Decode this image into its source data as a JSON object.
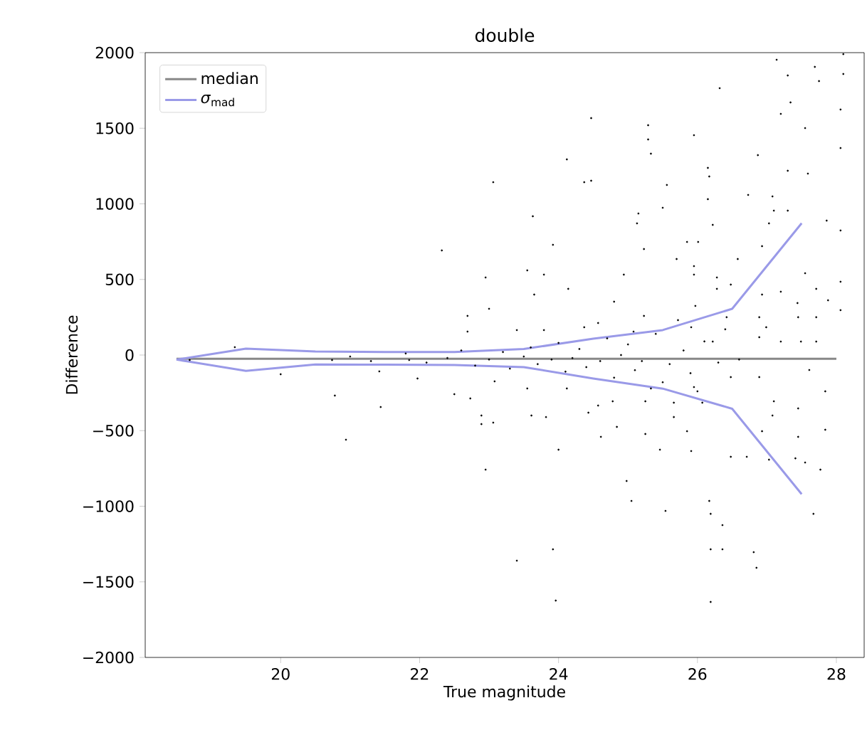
{
  "chart_data": {
    "type": "line",
    "title": "double",
    "xlabel": "True magnitude",
    "ylabel": "Difference",
    "xlim": [
      18.05,
      28.4
    ],
    "ylim": [
      -2000,
      2000
    ],
    "xticks": [
      20,
      22,
      24,
      26,
      28
    ],
    "yticks": [
      {
        "value": -2000,
        "label": "−2000"
      },
      {
        "value": -1500,
        "label": "−1500"
      },
      {
        "value": -1000,
        "label": "−1000"
      },
      {
        "value": -500,
        "label": "−500"
      },
      0,
      500,
      1000,
      1500,
      2000
    ],
    "legend": "top left",
    "grid": false,
    "line_style": "solid",
    "series": [
      {
        "type": "scatter",
        "color": "#000000",
        "x": [
          27.14,
          28.1,
          27.69,
          27.3,
          28.1,
          27.75,
          26.32,
          27.34,
          28.06,
          27.2,
          24.47,
          27.55,
          25.29,
          25.29,
          25.95,
          25.33,
          28.06,
          24.12,
          26.87,
          26.15,
          26.17,
          23.06,
          24.37,
          24.47,
          25.56,
          27.3,
          27.59,
          26.73,
          27.08,
          25.5,
          26.15,
          27.1,
          27.3,
          23.63,
          25.15,
          26.22,
          25.13,
          27.03,
          27.86,
          28.06,
          22.32,
          23.92,
          25.23,
          25.85,
          26.01,
          25.7,
          26.58,
          26.93,
          23.55,
          23.79,
          25.95,
          25.95,
          26.28,
          26.48,
          27.55,
          26.93,
          27.2,
          27.44,
          27.71,
          27.88,
          28.06,
          28.06,
          22.95,
          23.65,
          24.14,
          24.8,
          24.94,
          25.23,
          22.69,
          23.0,
          25.72,
          25.97,
          25.91,
          26.28,
          26.42,
          26.89,
          27.45,
          27.71,
          26.99,
          24.37,
          24.57,
          23.79,
          23.4,
          22.69,
          25.08,
          26.22,
          26.89,
          27.2,
          27.49,
          27.71,
          19.34,
          20.0,
          20.78,
          20.94,
          21.44,
          21.42,
          21.97,
          22.5,
          22.73,
          22.89,
          22.89,
          23.06,
          22.95,
          23.61,
          23.82,
          23.4,
          23.92,
          24.0,
          23.96,
          24.43,
          24.61,
          24.84,
          24.98,
          25.05,
          25.25,
          25.46,
          25.54,
          25.66,
          25.85,
          25.91,
          26.17,
          26.19,
          26.36,
          26.19,
          26.36,
          26.19,
          26.48,
          26.71,
          26.81,
          26.85,
          26.93,
          27.08,
          27.03,
          27.45,
          27.45,
          27.41,
          27.55,
          27.67,
          27.77,
          27.84,
          27.84,
          27.61,
          26.89,
          27.1,
          26.07,
          26.48,
          24.57,
          24.78,
          25.25,
          25.66,
          24.12,
          23.55,
          23.08,
          25.33,
          25.95,
          18.69,
          20.74,
          21.85,
          21.0,
          21.3,
          21.8,
          22.1,
          22.4,
          22.6,
          22.8,
          23.0,
          23.2,
          23.3,
          23.5,
          23.6,
          23.7,
          23.9,
          24.0,
          24.1,
          24.2,
          24.3,
          24.4,
          24.6,
          24.7,
          24.8,
          24.9,
          25.0,
          25.1,
          25.2,
          25.4,
          25.5,
          25.6,
          25.8,
          25.9,
          26.0,
          26.1,
          26.3,
          26.4,
          26.6
        ],
        "values": [
          1953,
          1990,
          1906,
          1849,
          1859,
          1812,
          1765,
          1671,
          1624,
          1595,
          1567,
          1501,
          1520,
          1426,
          1454,
          1332,
          1369,
          1294,
          1322,
          1238,
          1181,
          1143,
          1143,
          1153,
          1125,
          1219,
          1200,
          1059,
          1049,
          974,
          1031,
          955,
          955,
          918,
          936,
          861,
          871,
          871,
          889,
          824,
          692,
          729,
          701,
          748,
          748,
          635,
          635,
          720,
          560,
          532,
          588,
          532,
          513,
          466,
          541,
          400,
          419,
          344,
          438,
          362,
          297,
          485,
          513,
          400,
          438,
          353,
          532,
          259,
          259,
          306,
          231,
          325,
          184,
          438,
          250,
          250,
          250,
          250,
          184,
          184,
          212,
          165,
          165,
          155,
          155,
          89,
          118,
          89,
          89,
          89,
          52,
          -127,
          -268,
          -560,
          -344,
          -108,
          -155,
          -259,
          -287,
          -400,
          -457,
          -447,
          -758,
          -400,
          -410,
          -1360,
          -1285,
          -626,
          -1624,
          -381,
          -541,
          -475,
          -833,
          -965,
          -522,
          -626,
          -1031,
          -410,
          -504,
          -635,
          -965,
          -1050,
          -1125,
          -1285,
          -1285,
          -1633,
          -673,
          -673,
          -1304,
          -1407,
          -504,
          -400,
          -692,
          -353,
          -541,
          -683,
          -711,
          -1050,
          -758,
          -494,
          -240,
          -99,
          -146,
          -306,
          -315,
          -146,
          -334,
          -306,
          -306,
          -315,
          -221,
          -221,
          -174,
          -221,
          -212,
          -33,
          -33,
          -33,
          -10,
          -40,
          10,
          -50,
          -20,
          30,
          -70,
          -30,
          20,
          -90,
          -10,
          50,
          -60,
          -30,
          80,
          -110,
          -20,
          40,
          -80,
          -40,
          110,
          -150,
          0,
          70,
          -100,
          -40,
          140,
          -180,
          -60,
          30,
          -120,
          -240,
          90,
          -50,
          170,
          -30
        ]
      },
      {
        "name": "median",
        "color": "#888888",
        "x": [
          18.5,
          19.5,
          20.5,
          21.5,
          22.5,
          23.5,
          24.5,
          25.5,
          26.5,
          27.5,
          28.0
        ],
        "values": [
          -25,
          -25,
          -25,
          -25,
          -25,
          -25,
          -25,
          -25,
          -25,
          -25,
          -25
        ]
      },
      {
        "name": "*σ*$_{mad}$",
        "color": "#9a9ae8",
        "x": [
          18.5,
          19.5,
          20.5,
          21.5,
          22.5,
          23.5,
          24.5,
          25.5,
          26.5,
          27.5
        ],
        "values": [
          -30,
          42,
          24,
          20,
          20,
          40,
          108,
          165,
          306,
          872
        ]
      },
      {
        "color": "#9a9ae8",
        "x": [
          18.5,
          19.5,
          20.5,
          21.5,
          22.5,
          23.5,
          24.5,
          25.5,
          26.5,
          27.5
        ],
        "values": [
          -30,
          -105,
          -62,
          -64,
          -66,
          -80,
          -155,
          -222,
          -355,
          -920
        ]
      }
    ]
  }
}
